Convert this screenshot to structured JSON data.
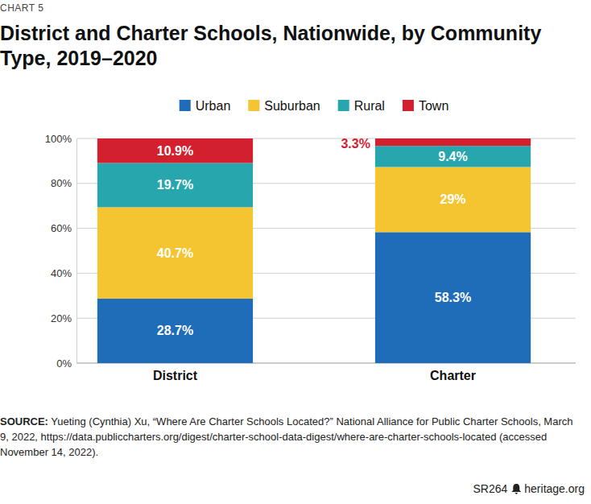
{
  "chart_data": {
    "type": "bar",
    "stacked": true,
    "data_labels": true,
    "grid": true,
    "legend": "top",
    "chart_label": "CHART 5",
    "title": "District and Charter Schools, Nationwide, by Community Type, 2019–2020",
    "categories": [
      "District",
      "Charter"
    ],
    "series": [
      {
        "name": "Urban",
        "color": "#1f6db8",
        "values": [
          28.7,
          58.3
        ],
        "value_labels": [
          "28.7%",
          "58.3%"
        ]
      },
      {
        "name": "Suburban",
        "color": "#f4c431",
        "values": [
          40.7,
          29
        ],
        "value_labels": [
          "40.7%",
          "29%"
        ]
      },
      {
        "name": "Rural",
        "color": "#27a6ae",
        "values": [
          19.7,
          9.4
        ],
        "value_labels": [
          "19.7%",
          "9.4%"
        ]
      },
      {
        "name": "Town",
        "color": "#d2202f",
        "values": [
          10.9,
          3.3
        ],
        "value_labels": [
          "10.9%",
          "3.3%"
        ]
      }
    ],
    "ylim": [
      0,
      100
    ],
    "yticks": [
      {
        "value": 0,
        "label": "0%"
      },
      {
        "value": 20,
        "label": "20%"
      },
      {
        "value": 40,
        "label": "40%"
      },
      {
        "value": 60,
        "label": "60%"
      },
      {
        "value": 80,
        "label": "80%"
      },
      {
        "value": 100,
        "label": "100%"
      }
    ],
    "source_label": "SOURCE:",
    "source": "Yueting (Cynthia) Xu, “Where Are Charter Schools Located?” National Alliance for Public Charter Schools, March 9, 2022, https://data.publiccharters.org/digest/charter-school-data-digest/where-are-charter-schools-located (accessed November 14, 2022).",
    "footer": [
      "SR264",
      "heritage.org"
    ]
  }
}
